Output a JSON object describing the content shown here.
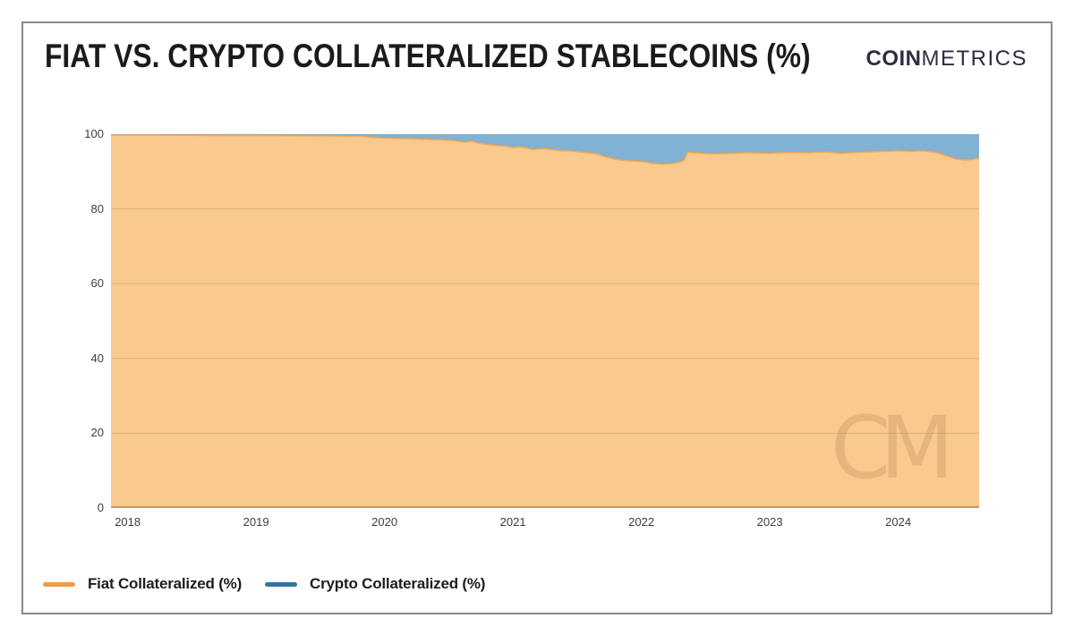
{
  "header": {
    "title": "FIAT VS. CRYPTO COLLATERALIZED STABLECOINS (%)",
    "logo_bold": "COIN",
    "logo_light": "METRICS"
  },
  "watermark": "CM",
  "chart_data": {
    "type": "area",
    "stacked": true,
    "title": "FIAT VS. CRYPTO COLLATERALIZED STABLECOINS (%)",
    "xlabel": "",
    "ylabel": "",
    "ylim": [
      0,
      100
    ],
    "xlim": [
      2017.87,
      2024.63
    ],
    "grid": true,
    "legend_position": "bottom-left",
    "xticks": [
      2018,
      2019,
      2020,
      2021,
      2022,
      2023,
      2024
    ],
    "yticks": [
      0,
      20,
      40,
      60,
      80,
      100
    ],
    "x": [
      2017.87,
      2018.1,
      2018.4,
      2018.7,
      2019.0,
      2019.3,
      2019.6,
      2019.8,
      2019.9,
      2020.0,
      2020.15,
      2020.3,
      2020.45,
      2020.55,
      2020.62,
      2020.68,
      2020.75,
      2020.85,
      2020.95,
      2021.0,
      2021.05,
      2021.15,
      2021.25,
      2021.35,
      2021.45,
      2021.55,
      2021.65,
      2021.72,
      2021.8,
      2021.9,
      2022.0,
      2022.08,
      2022.16,
      2022.24,
      2022.3,
      2022.33,
      2022.36,
      2022.45,
      2022.55,
      2022.7,
      2022.85,
      2023.0,
      2023.15,
      2023.3,
      2023.45,
      2023.55,
      2023.7,
      2023.85,
      2024.0,
      2024.1,
      2024.2,
      2024.3,
      2024.38,
      2024.45,
      2024.52,
      2024.58,
      2024.63
    ],
    "series": [
      {
        "name": "Fiat Collateralized (%)",
        "color": "#ef9d3f",
        "fill": "#f9c98d",
        "values": [
          99.8,
          99.8,
          99.75,
          99.7,
          99.7,
          99.65,
          99.6,
          99.5,
          99.2,
          99.0,
          98.9,
          98.7,
          98.5,
          98.3,
          97.9,
          98.1,
          97.5,
          97.1,
          96.8,
          96.4,
          96.7,
          96.0,
          96.2,
          95.7,
          95.5,
          95.2,
          94.8,
          94.0,
          93.3,
          92.9,
          92.8,
          92.3,
          92.0,
          92.2,
          92.6,
          93.0,
          95.2,
          95.0,
          94.8,
          94.9,
          95.1,
          94.9,
          95.2,
          95.1,
          95.3,
          94.9,
          95.2,
          95.4,
          95.6,
          95.4,
          95.6,
          95.1,
          94.2,
          93.4,
          93.1,
          93.3,
          93.7
        ]
      },
      {
        "name": "Crypto Collateralized (%)",
        "color": "#2f76a3",
        "fill": "#7fb2d3",
        "values": [
          0.2,
          0.2,
          0.25,
          0.3,
          0.3,
          0.35,
          0.4,
          0.5,
          0.8,
          1.0,
          1.1,
          1.3,
          1.5,
          1.7,
          2.1,
          1.9,
          2.5,
          2.9,
          3.2,
          3.6,
          3.3,
          4.0,
          3.8,
          4.3,
          4.5,
          4.8,
          5.2,
          6.0,
          6.7,
          7.1,
          7.2,
          7.7,
          8.0,
          7.8,
          7.4,
          7.0,
          4.8,
          5.0,
          5.2,
          5.1,
          4.9,
          5.1,
          4.8,
          4.9,
          4.7,
          5.1,
          4.8,
          4.6,
          4.4,
          4.6,
          4.4,
          4.9,
          5.8,
          6.6,
          6.9,
          6.7,
          6.3
        ]
      }
    ]
  }
}
